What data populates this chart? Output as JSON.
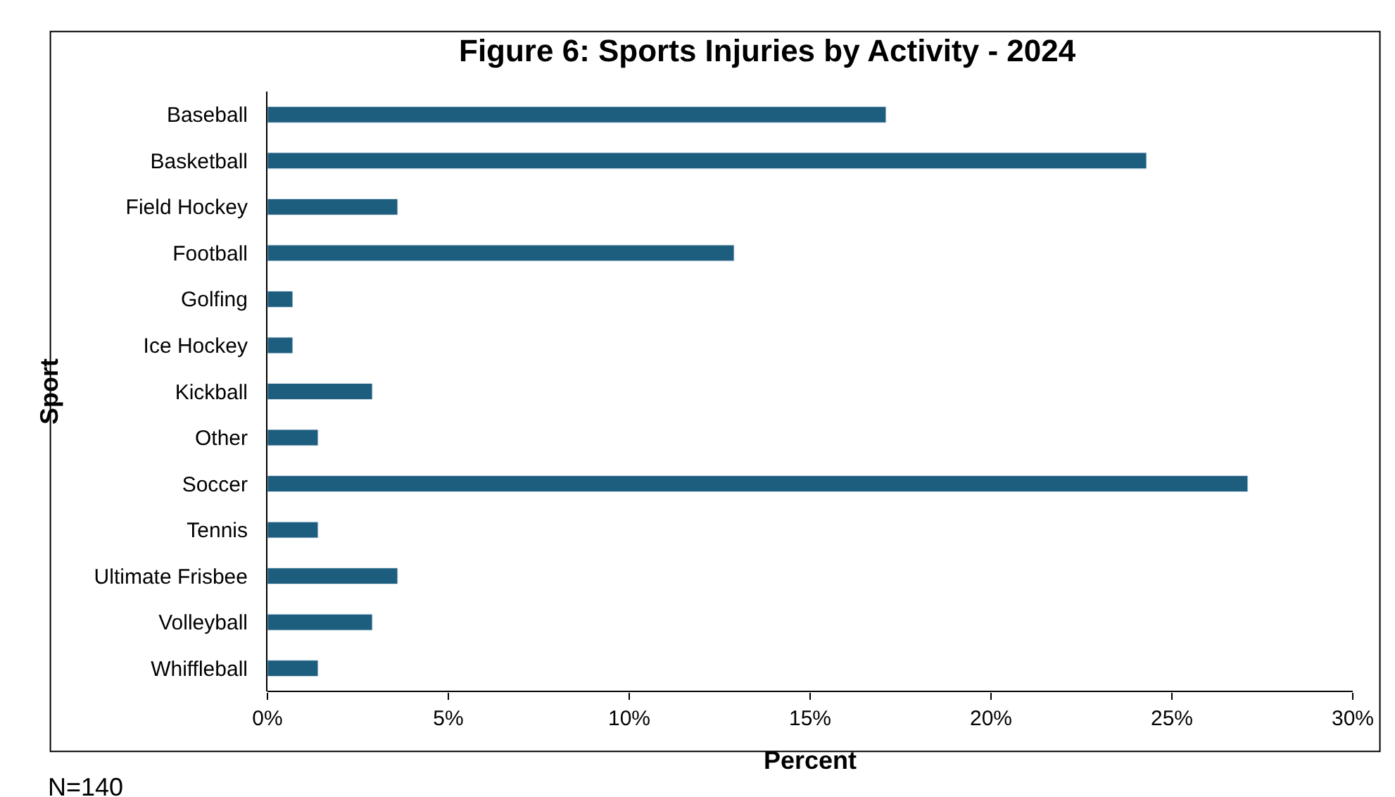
{
  "chart_data": {
    "type": "bar",
    "orientation": "horizontal",
    "title": "Figure 6: Sports Injuries by Activity - 2024",
    "xlabel": "Percent",
    "ylabel": "Sport",
    "categories": [
      "Baseball",
      "Basketball",
      "Field Hockey",
      "Football",
      "Golfing",
      "Ice Hockey",
      "Kickball",
      "Other",
      "Soccer",
      "Tennis",
      "Ultimate Frisbee",
      "Volleyball",
      "Whiffleball"
    ],
    "values": [
      17.1,
      24.3,
      3.6,
      12.9,
      0.7,
      0.7,
      2.9,
      1.4,
      27.1,
      1.4,
      3.6,
      2.9,
      1.4
    ],
    "color": "#1d5d7e",
    "xlim": [
      0,
      30
    ],
    "xticks": [
      {
        "value": 0,
        "label": "0%"
      },
      {
        "value": 5,
        "label": "5%"
      },
      {
        "value": 10,
        "label": "10%"
      },
      {
        "value": 15,
        "label": "15%"
      },
      {
        "value": 20,
        "label": "20%"
      },
      {
        "value": 25,
        "label": "25%"
      },
      {
        "value": 30,
        "label": "30%"
      }
    ],
    "annotations": [
      "N=140"
    ]
  }
}
